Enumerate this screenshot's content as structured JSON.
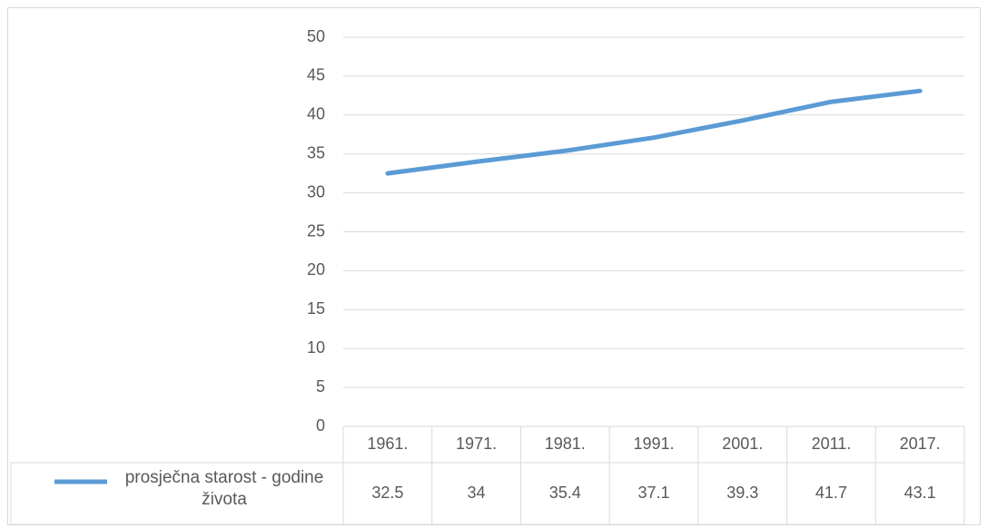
{
  "chart_data": {
    "type": "line",
    "categories": [
      "1961.",
      "1971.",
      "1981.",
      "1991.",
      "2001.",
      "2011.",
      "2017."
    ],
    "series": [
      {
        "name": "prosječna starost - godine života",
        "color": "#5b9bd5",
        "values": [
          32.5,
          34,
          35.4,
          37.1,
          39.3,
          41.7,
          43.1
        ]
      }
    ],
    "ylim": [
      0,
      50
    ],
    "yticks": [
      0,
      5,
      10,
      15,
      20,
      25,
      30,
      35,
      40,
      45,
      50
    ],
    "grid": true,
    "data_table": true
  }
}
